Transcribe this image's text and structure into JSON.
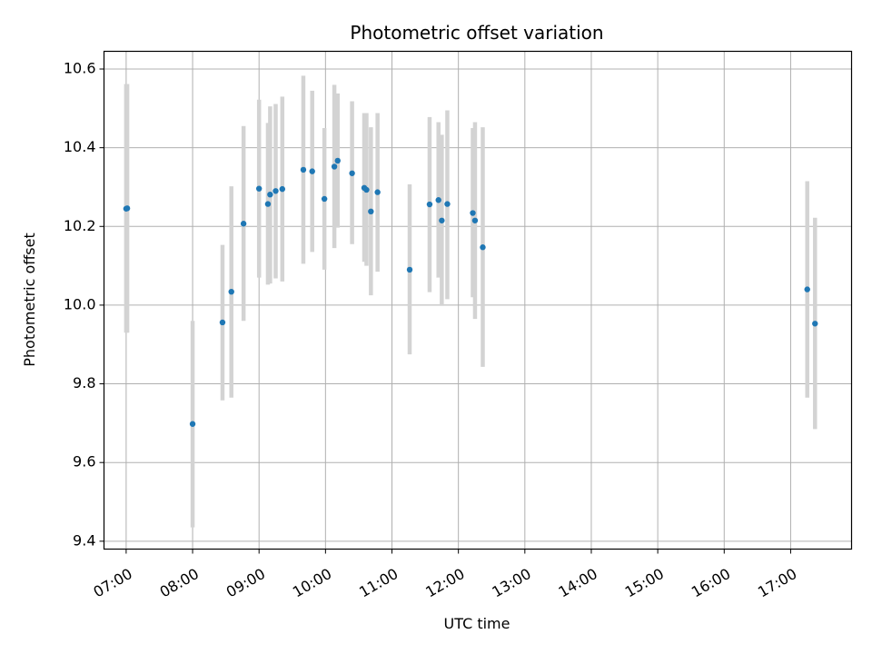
{
  "chart_data": {
    "type": "scatter",
    "title": "Photometric offset variation",
    "xlabel": "UTC time",
    "ylabel": "Photometric offset",
    "x_axis": {
      "kind": "time",
      "range": [
        "06:40",
        "17:55"
      ],
      "ticks": [
        "07:00",
        "08:00",
        "09:00",
        "10:00",
        "11:00",
        "12:00",
        "13:00",
        "14:00",
        "15:00",
        "16:00",
        "17:00"
      ]
    },
    "y_axis": {
      "range": [
        9.38,
        10.645
      ],
      "ticks": [
        9.4,
        9.6,
        9.8,
        10.0,
        10.2,
        10.4,
        10.6
      ],
      "tick_labels": [
        "9.4",
        "9.6",
        "9.8",
        "10.0",
        "10.2",
        "10.4",
        "10.6"
      ]
    },
    "grid": true,
    "colors": {
      "point": "#1f77b4",
      "errorbar": "#d3d3d3",
      "grid": "#b0b0b0"
    },
    "points": [
      {
        "x": "07:00",
        "y": 10.245,
        "err_low": 9.93,
        "err_high": 10.562
      },
      {
        "x": "07:01",
        "y": 10.246,
        "err_low": 9.93,
        "err_high": 10.562
      },
      {
        "x": "08:00",
        "y": 9.698,
        "err_low": 9.435,
        "err_high": 9.96
      },
      {
        "x": "08:27",
        "y": 9.956,
        "err_low": 9.758,
        "err_high": 10.153
      },
      {
        "x": "08:35",
        "y": 10.034,
        "err_low": 9.765,
        "err_high": 10.302
      },
      {
        "x": "08:46",
        "y": 10.207,
        "err_low": 9.96,
        "err_high": 10.455
      },
      {
        "x": "09:00",
        "y": 10.296,
        "err_low": 10.07,
        "err_high": 10.522
      },
      {
        "x": "09:08",
        "y": 10.257,
        "err_low": 10.052,
        "err_high": 10.463
      },
      {
        "x": "09:10",
        "y": 10.281,
        "err_low": 10.055,
        "err_high": 10.505
      },
      {
        "x": "09:15",
        "y": 10.29,
        "err_low": 10.068,
        "err_high": 10.511
      },
      {
        "x": "09:21",
        "y": 10.295,
        "err_low": 10.06,
        "err_high": 10.53
      },
      {
        "x": "09:40",
        "y": 10.344,
        "err_low": 10.105,
        "err_high": 10.583
      },
      {
        "x": "09:48",
        "y": 10.34,
        "err_low": 10.135,
        "err_high": 10.545
      },
      {
        "x": "09:59",
        "y": 10.27,
        "err_low": 10.09,
        "err_high": 10.45
      },
      {
        "x": "10:08",
        "y": 10.352,
        "err_low": 10.145,
        "err_high": 10.56
      },
      {
        "x": "10:11",
        "y": 10.367,
        "err_low": 10.197,
        "err_high": 10.538
      },
      {
        "x": "10:24",
        "y": 10.335,
        "err_low": 10.155,
        "err_high": 10.518
      },
      {
        "x": "10:35",
        "y": 10.298,
        "err_low": 10.11,
        "err_high": 10.488
      },
      {
        "x": "10:37",
        "y": 10.293,
        "err_low": 10.1,
        "err_high": 10.488
      },
      {
        "x": "10:41",
        "y": 10.238,
        "err_low": 10.025,
        "err_high": 10.452
      },
      {
        "x": "10:47",
        "y": 10.287,
        "err_low": 10.085,
        "err_high": 10.488
      },
      {
        "x": "11:16",
        "y": 10.09,
        "err_low": 9.875,
        "err_high": 10.307
      },
      {
        "x": "11:34",
        "y": 10.256,
        "err_low": 10.033,
        "err_high": 10.478
      },
      {
        "x": "11:42",
        "y": 10.267,
        "err_low": 10.07,
        "err_high": 10.465
      },
      {
        "x": "11:45",
        "y": 10.215,
        "err_low": 9.998,
        "err_high": 10.433
      },
      {
        "x": "11:50",
        "y": 10.257,
        "err_low": 10.015,
        "err_high": 10.495
      },
      {
        "x": "12:13",
        "y": 10.234,
        "err_low": 10.02,
        "err_high": 10.45
      },
      {
        "x": "12:15",
        "y": 10.215,
        "err_low": 9.965,
        "err_high": 10.465
      },
      {
        "x": "12:22",
        "y": 10.147,
        "err_low": 9.843,
        "err_high": 10.452
      },
      {
        "x": "17:15",
        "y": 10.04,
        "err_low": 9.765,
        "err_high": 10.315
      },
      {
        "x": "17:22",
        "y": 9.953,
        "err_low": 9.685,
        "err_high": 10.222
      }
    ]
  }
}
